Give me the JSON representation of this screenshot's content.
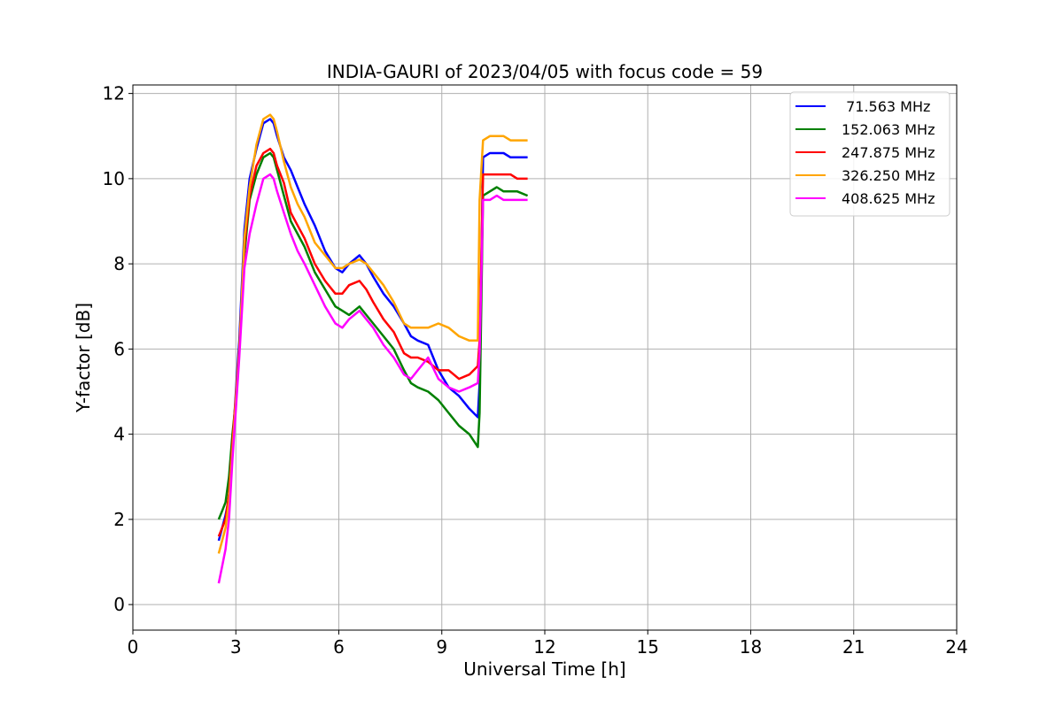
{
  "chart_data": {
    "type": "line",
    "title": "INDIA-GAURI of 2023/04/05 with focus code = 59",
    "xlabel": "Universal Time [h]",
    "ylabel": "Y-factor [dB]",
    "xlim": [
      0,
      24
    ],
    "ylim": [
      -0.6,
      12.2
    ],
    "xticks": [
      0,
      3,
      6,
      9,
      12,
      15,
      18,
      21,
      24
    ],
    "yticks": [
      0,
      2,
      4,
      6,
      8,
      10,
      12
    ],
    "grid": true,
    "legend_position": "top-right",
    "series": [
      {
        "name": " 71.563 MHz",
        "color": "#0000ff",
        "x": [
          2.5,
          2.6,
          2.7,
          2.8,
          2.9,
          3.0,
          3.1,
          3.25,
          3.4,
          3.6,
          3.8,
          4.0,
          4.1,
          4.2,
          4.4,
          4.6,
          4.8,
          5.0,
          5.3,
          5.6,
          5.9,
          6.1,
          6.3,
          6.6,
          6.8,
          7.0,
          7.3,
          7.6,
          7.9,
          8.1,
          8.3,
          8.6,
          8.9,
          9.2,
          9.5,
          9.8,
          10.05,
          10.1,
          10.2,
          10.4,
          10.6,
          10.8,
          11.0,
          11.2,
          11.5
        ],
        "y": [
          1.5,
          1.8,
          2.1,
          2.5,
          3.7,
          5.0,
          6.2,
          8.8,
          10.0,
          10.7,
          11.3,
          11.4,
          11.3,
          11.0,
          10.5,
          10.2,
          9.8,
          9.4,
          8.9,
          8.3,
          7.9,
          7.8,
          8.0,
          8.2,
          8.0,
          7.7,
          7.3,
          7.0,
          6.6,
          6.3,
          6.2,
          6.1,
          5.5,
          5.1,
          4.9,
          4.6,
          4.4,
          5.2,
          10.5,
          10.6,
          10.6,
          10.6,
          10.5,
          10.5,
          10.5
        ]
      },
      {
        "name": "152.063 MHz",
        "color": "#008000",
        "x": [
          2.5,
          2.6,
          2.7,
          2.8,
          2.9,
          3.0,
          3.1,
          3.25,
          3.4,
          3.6,
          3.8,
          4.0,
          4.1,
          4.2,
          4.4,
          4.6,
          4.8,
          5.0,
          5.3,
          5.6,
          5.9,
          6.1,
          6.3,
          6.6,
          6.8,
          7.0,
          7.3,
          7.6,
          7.9,
          8.1,
          8.3,
          8.6,
          8.9,
          9.2,
          9.5,
          9.8,
          10.05,
          10.1,
          10.2,
          10.4,
          10.6,
          10.8,
          11.0,
          11.2,
          11.5
        ],
        "y": [
          2.0,
          2.2,
          2.4,
          3.0,
          4.0,
          4.8,
          6.0,
          8.2,
          9.5,
          10.1,
          10.5,
          10.6,
          10.5,
          10.2,
          9.6,
          9.0,
          8.7,
          8.4,
          7.8,
          7.4,
          7.0,
          6.9,
          6.8,
          7.0,
          6.8,
          6.6,
          6.3,
          6.0,
          5.5,
          5.2,
          5.1,
          5.0,
          4.8,
          4.5,
          4.2,
          4.0,
          3.7,
          4.5,
          9.6,
          9.7,
          9.8,
          9.7,
          9.7,
          9.7,
          9.6
        ]
      },
      {
        "name": "247.875 MHz",
        "color": "#ff0000",
        "x": [
          2.5,
          2.6,
          2.7,
          2.8,
          2.9,
          3.0,
          3.1,
          3.25,
          3.4,
          3.6,
          3.8,
          4.0,
          4.1,
          4.2,
          4.4,
          4.6,
          4.8,
          5.0,
          5.3,
          5.6,
          5.9,
          6.1,
          6.3,
          6.6,
          6.8,
          7.0,
          7.3,
          7.6,
          7.9,
          8.1,
          8.3,
          8.6,
          8.9,
          9.2,
          9.5,
          9.8,
          10.05,
          10.1,
          10.2,
          10.4,
          10.6,
          10.8,
          11.0,
          11.2,
          11.5
        ],
        "y": [
          1.6,
          1.8,
          2.0,
          2.6,
          3.8,
          4.9,
          6.0,
          8.4,
          9.6,
          10.3,
          10.6,
          10.7,
          10.6,
          10.3,
          9.9,
          9.2,
          8.9,
          8.6,
          8.0,
          7.6,
          7.3,
          7.3,
          7.5,
          7.6,
          7.4,
          7.1,
          6.7,
          6.4,
          5.9,
          5.8,
          5.8,
          5.7,
          5.5,
          5.5,
          5.3,
          5.4,
          5.6,
          6.2,
          10.1,
          10.1,
          10.1,
          10.1,
          10.1,
          10.0,
          10.0
        ]
      },
      {
        "name": "326.250 MHz",
        "color": "#ffa500",
        "x": [
          2.5,
          2.6,
          2.7,
          2.8,
          2.9,
          3.0,
          3.1,
          3.25,
          3.4,
          3.6,
          3.8,
          4.0,
          4.1,
          4.2,
          4.4,
          4.6,
          4.8,
          5.0,
          5.3,
          5.6,
          5.9,
          6.1,
          6.3,
          6.6,
          6.8,
          7.0,
          7.3,
          7.6,
          7.9,
          8.1,
          8.3,
          8.6,
          8.9,
          9.2,
          9.5,
          9.8,
          10.05,
          10.1,
          10.2,
          10.4,
          10.6,
          10.8,
          11.0,
          11.2,
          11.5
        ],
        "y": [
          1.2,
          1.5,
          1.8,
          2.4,
          3.6,
          4.8,
          5.9,
          8.6,
          9.8,
          10.8,
          11.4,
          11.5,
          11.4,
          11.1,
          10.4,
          9.8,
          9.4,
          9.1,
          8.5,
          8.2,
          7.9,
          7.9,
          8.0,
          8.1,
          8.0,
          7.8,
          7.5,
          7.1,
          6.6,
          6.5,
          6.5,
          6.5,
          6.6,
          6.5,
          6.3,
          6.2,
          6.2,
          9.5,
          10.9,
          11.0,
          11.0,
          11.0,
          10.9,
          10.9,
          10.9
        ]
      },
      {
        "name": "408.625 MHz",
        "color": "#ff00ff",
        "x": [
          2.5,
          2.6,
          2.7,
          2.8,
          2.9,
          3.0,
          3.1,
          3.25,
          3.4,
          3.6,
          3.8,
          4.0,
          4.1,
          4.2,
          4.4,
          4.6,
          4.8,
          5.0,
          5.3,
          5.6,
          5.9,
          6.1,
          6.3,
          6.6,
          6.8,
          7.0,
          7.3,
          7.6,
          7.9,
          8.1,
          8.3,
          8.6,
          8.9,
          9.2,
          9.5,
          9.8,
          10.05,
          10.1,
          10.2,
          10.4,
          10.6,
          10.8,
          11.0,
          11.2,
          11.5
        ],
        "y": [
          0.5,
          0.9,
          1.3,
          2.0,
          3.4,
          4.6,
          5.8,
          7.9,
          8.7,
          9.4,
          10.0,
          10.1,
          10.0,
          9.7,
          9.2,
          8.7,
          8.3,
          8.0,
          7.5,
          7.0,
          6.6,
          6.5,
          6.7,
          6.9,
          6.7,
          6.5,
          6.1,
          5.8,
          5.4,
          5.3,
          5.5,
          5.8,
          5.3,
          5.1,
          5.0,
          5.1,
          5.2,
          5.9,
          9.5,
          9.5,
          9.6,
          9.5,
          9.5,
          9.5,
          9.5
        ]
      }
    ]
  }
}
